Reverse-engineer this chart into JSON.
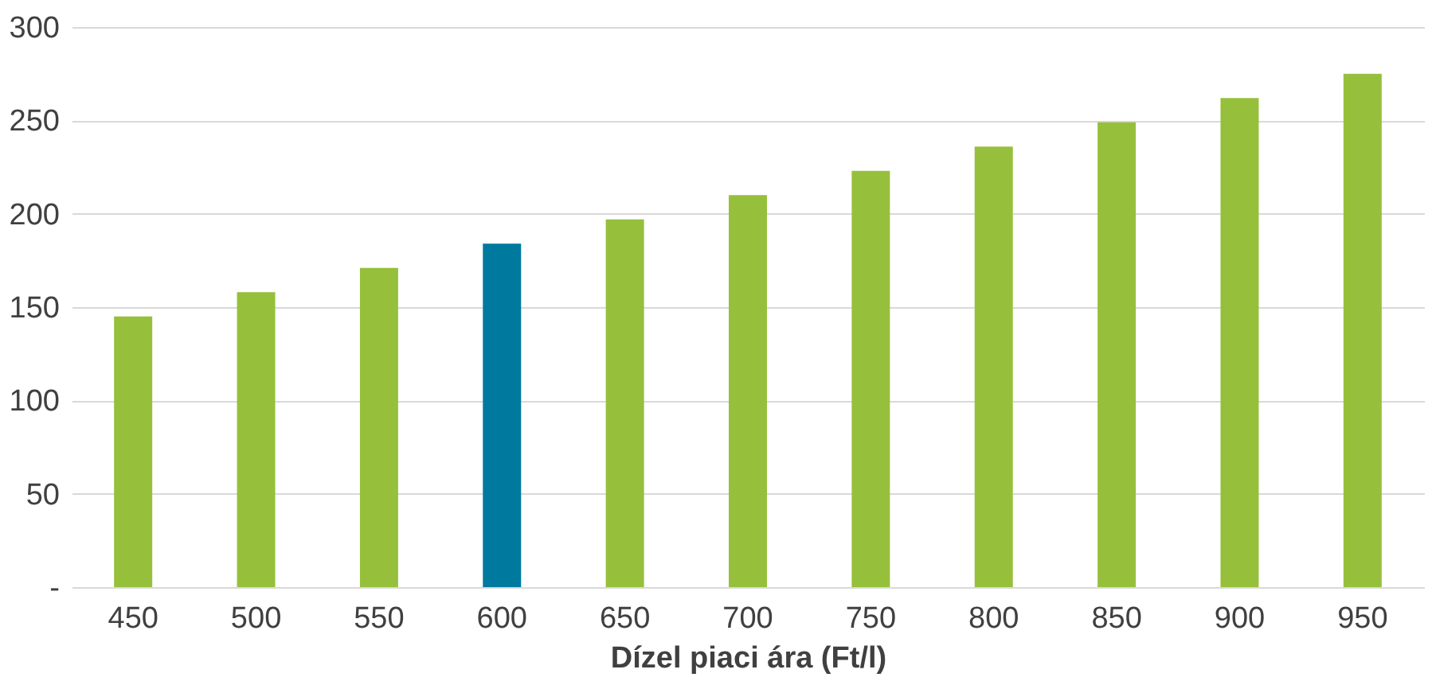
{
  "chart_data": {
    "type": "bar",
    "xlabel": "Dízel piaci ára (Ft/l)",
    "categories": [
      "450",
      "500",
      "550",
      "600",
      "650",
      "700",
      "750",
      "800",
      "850",
      "900",
      "950"
    ],
    "values": [
      145,
      158,
      171,
      184,
      197,
      210,
      223,
      236,
      249,
      262,
      275
    ],
    "colors": [
      "#96c03c",
      "#96c03c",
      "#96c03c",
      "#00799f",
      "#96c03c",
      "#96c03c",
      "#96c03c",
      "#96c03c",
      "#96c03c",
      "#96c03c",
      "#96c03c"
    ],
    "ylim": [
      0,
      300
    ],
    "yticks": [
      {
        "value": 0,
        "label": "-"
      },
      50,
      100,
      150,
      200,
      250,
      300
    ],
    "grid": "y"
  }
}
